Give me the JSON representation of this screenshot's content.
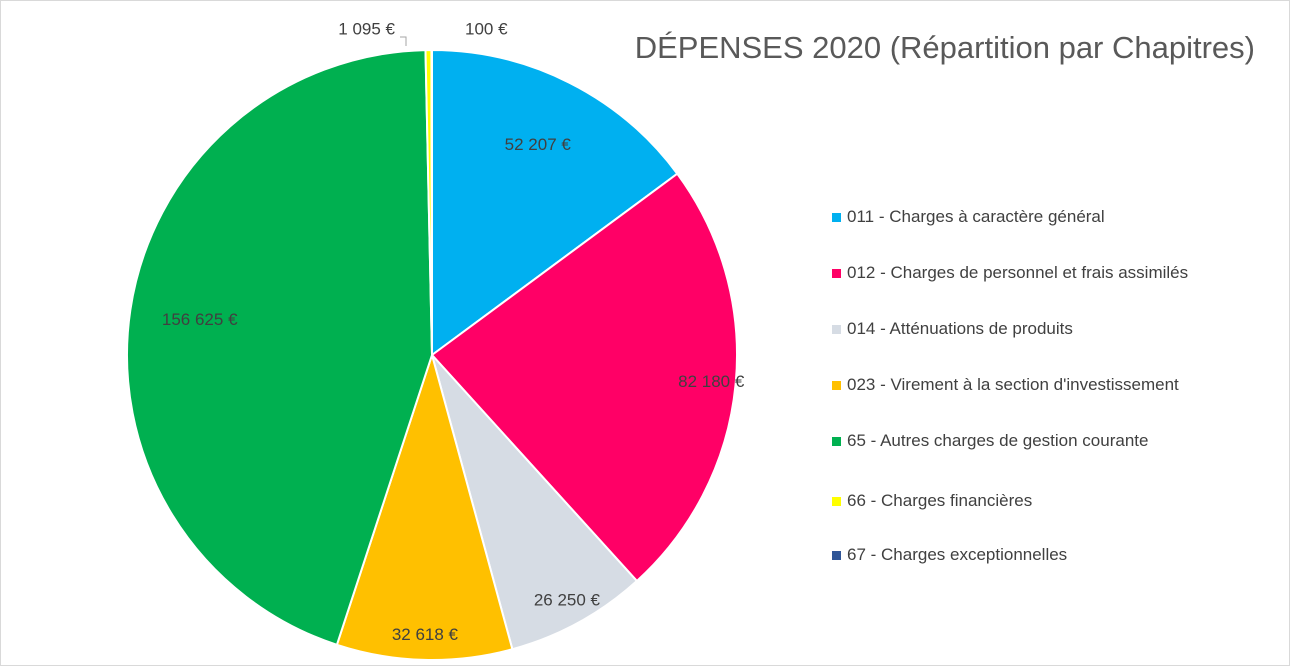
{
  "chart_data": {
    "type": "pie",
    "title": "DÉPENSES 2020 (Répartition par Chapitres)",
    "categories": [
      "011 - Charges à caractère général",
      "012 - Charges de personnel et frais assimilés",
      "014 - Atténuations de produits",
      "023 - Virement à la section d'investissement",
      "65 - Autres charges de gestion courante",
      "66 - Charges financières",
      "67 - Charges exceptionnelles"
    ],
    "values": [
      52207,
      82180,
      26250,
      32618,
      156625,
      1095,
      100
    ],
    "value_labels": [
      "52 207 €",
      "82 180 €",
      "26 250 €",
      "32 618 €",
      "156 625 €",
      "1 095 €",
      "100 €"
    ],
    "colors": [
      "#00b0f0",
      "#ff0066",
      "#d6dce4",
      "#ffc000",
      "#00b050",
      "#ffff00",
      "#2f5597"
    ],
    "legend": "right"
  }
}
